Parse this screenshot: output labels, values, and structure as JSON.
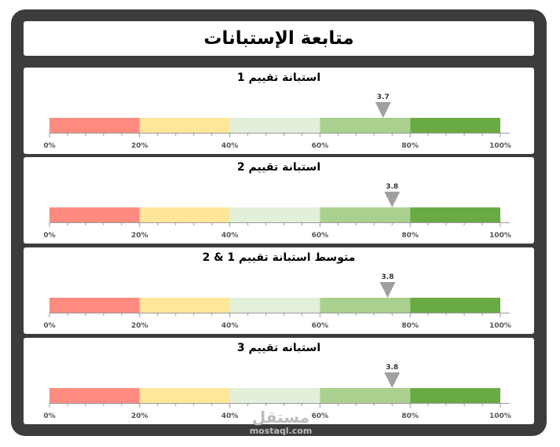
{
  "page_title": "متابعة الإستبانات",
  "watermark": {
    "arabic": "مستقل",
    "latin": "mostaql.com"
  },
  "chart_data": [
    {
      "type": "bar",
      "title": "استبانة تقييم 1",
      "bands": [
        {
          "from": 0,
          "to": 20,
          "color": "#ff8a80"
        },
        {
          "from": 20,
          "to": 40,
          "color": "#ffe699"
        },
        {
          "from": 40,
          "to": 60,
          "color": "#e2efda"
        },
        {
          "from": 60,
          "to": 80,
          "color": "#a9d08e"
        },
        {
          "from": 80,
          "to": 100,
          "color": "#6aaa45"
        }
      ],
      "tick_labels": [
        "0%",
        "20%",
        "40%",
        "60%",
        "80%",
        "100%"
      ],
      "xlim": [
        0,
        100
      ],
      "marker_value": 3.7,
      "marker_label": "3.7",
      "marker_position_percent": 74,
      "marker_color": "#a0a0a0"
    },
    {
      "type": "bar",
      "title": "استبانة تقييم 2",
      "bands": [
        {
          "from": 0,
          "to": 20,
          "color": "#ff8a80"
        },
        {
          "from": 20,
          "to": 40,
          "color": "#ffe699"
        },
        {
          "from": 40,
          "to": 60,
          "color": "#e2efda"
        },
        {
          "from": 60,
          "to": 80,
          "color": "#a9d08e"
        },
        {
          "from": 80,
          "to": 100,
          "color": "#6aaa45"
        }
      ],
      "tick_labels": [
        "0%",
        "20%",
        "40%",
        "60%",
        "80%",
        "100%"
      ],
      "xlim": [
        0,
        100
      ],
      "marker_value": 3.8,
      "marker_label": "3.8",
      "marker_position_percent": 76,
      "marker_color": "#a0a0a0"
    },
    {
      "type": "bar",
      "title": "متوسط استبانة تقييم 1 & 2",
      "bands": [
        {
          "from": 0,
          "to": 20,
          "color": "#ff8a80"
        },
        {
          "from": 20,
          "to": 40,
          "color": "#ffe699"
        },
        {
          "from": 40,
          "to": 60,
          "color": "#e2efda"
        },
        {
          "from": 60,
          "to": 80,
          "color": "#a9d08e"
        },
        {
          "from": 80,
          "to": 100,
          "color": "#6aaa45"
        }
      ],
      "tick_labels": [
        "0%",
        "20%",
        "40%",
        "60%",
        "80%",
        "100%"
      ],
      "xlim": [
        0,
        100
      ],
      "marker_value": 3.8,
      "marker_label": "3.8",
      "marker_position_percent": 75,
      "marker_color": "#a0a0a0"
    },
    {
      "type": "bar",
      "title": "استبانه تقييم 3",
      "bands": [
        {
          "from": 0,
          "to": 20,
          "color": "#ff8a80"
        },
        {
          "from": 20,
          "to": 40,
          "color": "#ffe699"
        },
        {
          "from": 40,
          "to": 60,
          "color": "#e2efda"
        },
        {
          "from": 60,
          "to": 80,
          "color": "#a9d08e"
        },
        {
          "from": 80,
          "to": 100,
          "color": "#6aaa45"
        }
      ],
      "tick_labels": [
        "0%",
        "20%",
        "40%",
        "60%",
        "80%",
        "100%"
      ],
      "xlim": [
        0,
        100
      ],
      "marker_value": 3.8,
      "marker_label": "3.8",
      "marker_position_percent": 76,
      "marker_color": "#a0a0a0"
    }
  ]
}
